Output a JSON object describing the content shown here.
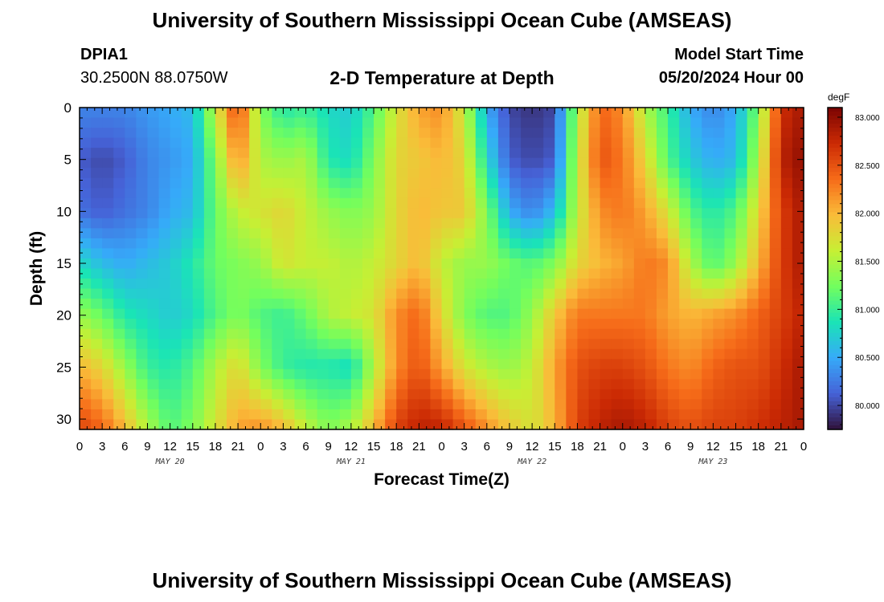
{
  "header": {
    "title": "University of Southern Mississippi Ocean Cube (AMSEAS)",
    "station_id": "DPIA1",
    "coordinates": "30.2500N  88.0750W",
    "subtitle": "2-D Temperature at Depth",
    "model_start_label": "Model Start Time",
    "model_start_value": "05/20/2024 Hour 00"
  },
  "footer": {
    "title_repeat": "University of Southern Mississippi Ocean Cube (AMSEAS)"
  },
  "colors": {
    "colormap": [
      "#30123b",
      "#4662d7",
      "#36aaf9",
      "#1ae4b6",
      "#72fe5e",
      "#c7ef34",
      "#fabb39",
      "#f66b19",
      "#cb2a04",
      "#7a0403"
    ]
  },
  "chart_data": {
    "type": "heatmap",
    "title": "2-D Temperature at Depth",
    "xlabel": "Forecast Time(Z)",
    "ylabel": "Depth (ft)",
    "x_tick_labels": [
      "0",
      "3",
      "6",
      "9",
      "12",
      "15",
      "18",
      "21",
      "0",
      "3",
      "6",
      "9",
      "12",
      "15",
      "18",
      "21",
      "0",
      "3",
      "6",
      "9",
      "12",
      "15",
      "18",
      "21",
      "0",
      "3",
      "6",
      "9",
      "12",
      "15",
      "18",
      "21",
      "0"
    ],
    "x_range_hours": [
      0,
      96
    ],
    "date_labels": [
      {
        "label": "MAY 20",
        "hour": 12
      },
      {
        "label": "MAY 21",
        "hour": 36
      },
      {
        "label": "MAY 22",
        "hour": 60
      },
      {
        "label": "MAY 23",
        "hour": 84
      }
    ],
    "y_ticks": [
      0,
      5,
      10,
      15,
      20,
      25,
      30
    ],
    "y_range_ft": [
      0,
      31
    ],
    "colorbar": {
      "unit": "degF",
      "range": [
        79.75,
        83.1
      ],
      "ticks": [
        "80.000",
        "80.500",
        "81.000",
        "81.500",
        "82.000",
        "82.500",
        "83.000"
      ]
    },
    "grid_x_hours": [
      0,
      3,
      6,
      9,
      12,
      15,
      18,
      21,
      24,
      27,
      30,
      33,
      36,
      39,
      42,
      45,
      48,
      51,
      54,
      57,
      60,
      63,
      66,
      69,
      72,
      75,
      78,
      81,
      84,
      87,
      90,
      93,
      96
    ],
    "grid_y_ft": [
      0,
      5,
      10,
      15,
      20,
      25,
      31
    ],
    "values_degF": [
      [
        80.3,
        80.3,
        80.3,
        80.4,
        80.5,
        80.6,
        81.6,
        82.6,
        81.3,
        80.9,
        81.0,
        80.8,
        80.7,
        81.1,
        81.7,
        82.1,
        82.2,
        81.6,
        80.5,
        80.0,
        79.9,
        80.0,
        81.5,
        82.4,
        82.2,
        81.5,
        81.0,
        80.5,
        80.3,
        80.5,
        81.3,
        82.7,
        82.9
      ],
      [
        80.1,
        80.0,
        80.1,
        80.3,
        80.4,
        80.5,
        81.3,
        82.2,
        81.5,
        81.4,
        81.5,
        80.9,
        80.8,
        81.3,
        81.8,
        81.9,
        82.0,
        81.8,
        80.8,
        80.1,
        80.0,
        80.1,
        81.6,
        82.5,
        82.3,
        81.8,
        81.1,
        80.7,
        80.5,
        80.6,
        81.5,
        82.8,
        83.0
      ],
      [
        80.2,
        80.1,
        80.2,
        80.3,
        80.5,
        80.6,
        81.2,
        81.6,
        81.7,
        81.8,
        81.6,
        81.4,
        81.3,
        81.4,
        81.8,
        82.0,
        81.9,
        81.9,
        81.3,
        80.5,
        80.3,
        80.6,
        81.6,
        82.2,
        82.3,
        82.1,
        81.7,
        81.1,
        80.9,
        81.1,
        81.8,
        82.6,
        82.9
      ],
      [
        80.8,
        80.6,
        80.5,
        80.6,
        80.7,
        80.9,
        81.2,
        81.3,
        81.4,
        81.7,
        81.6,
        81.6,
        81.5,
        81.6,
        81.8,
        82.0,
        81.6,
        81.4,
        81.4,
        81.2,
        81.1,
        81.3,
        81.8,
        82.0,
        82.1,
        82.3,
        82.2,
        81.5,
        81.1,
        81.4,
        82.0,
        82.6,
        82.9
      ],
      [
        81.4,
        81.2,
        80.9,
        80.8,
        80.7,
        80.8,
        81.1,
        81.3,
        81.1,
        81.0,
        81.2,
        81.5,
        81.6,
        81.7,
        82.2,
        82.4,
        81.8,
        81.3,
        81.1,
        81.1,
        81.4,
        81.9,
        82.3,
        82.3,
        82.3,
        82.3,
        82.1,
        82.0,
        82.1,
        82.2,
        82.4,
        82.6,
        82.8
      ],
      [
        82.0,
        81.8,
        81.4,
        81.0,
        80.9,
        81.1,
        81.5,
        81.8,
        81.3,
        81.0,
        80.9,
        80.9,
        80.8,
        81.5,
        82.2,
        82.5,
        82.1,
        81.7,
        81.5,
        81.4,
        81.6,
        82.1,
        82.5,
        82.6,
        82.6,
        82.5,
        82.3,
        82.2,
        82.4,
        82.5,
        82.5,
        82.7,
        82.9
      ],
      [
        82.6,
        82.4,
        82.0,
        81.5,
        81.1,
        81.3,
        81.7,
        82.1,
        82.2,
        82.0,
        81.6,
        81.3,
        81.5,
        82.0,
        82.6,
        82.8,
        82.8,
        82.5,
        82.2,
        81.9,
        81.7,
        82.0,
        82.6,
        82.8,
        82.9,
        82.8,
        82.6,
        82.5,
        82.6,
        82.6,
        82.7,
        82.8,
        82.9
      ]
    ]
  }
}
